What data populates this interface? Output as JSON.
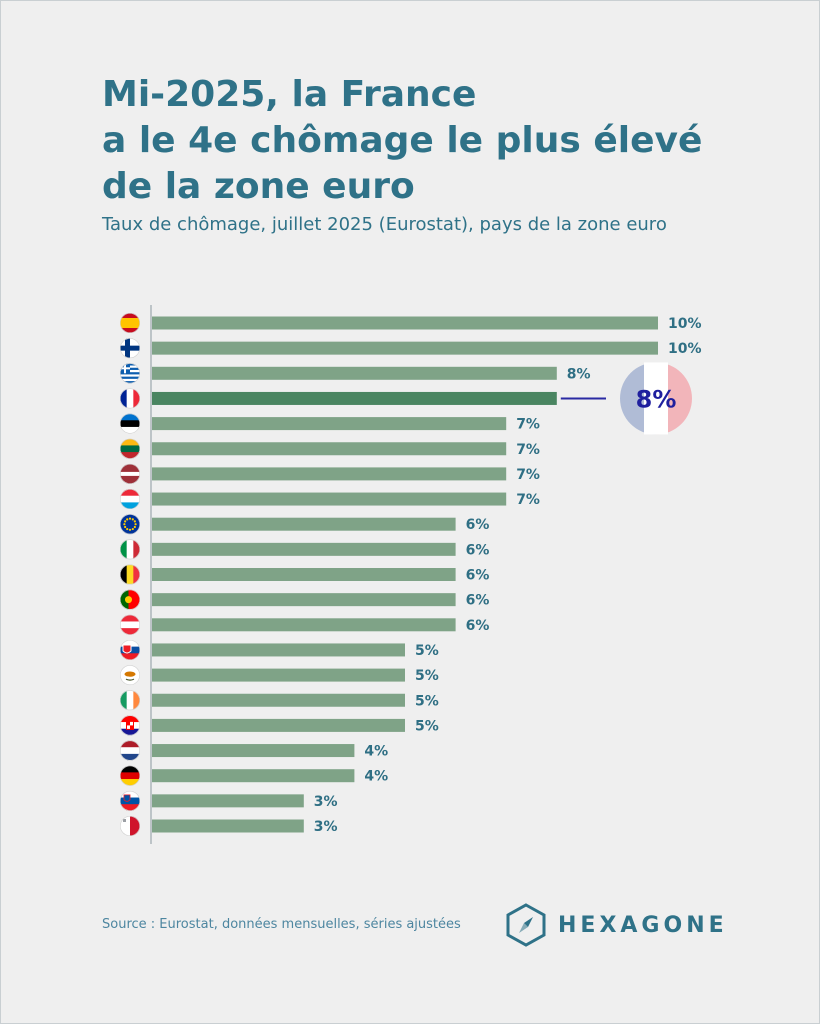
{
  "title_lines": [
    "Mi-2025, la France",
    "a le 4e chômage le plus élevé",
    "de la zone euro"
  ],
  "subtitle": "Taux de chômage, juillet 2025 (Eurostat), pays de la zone euro",
  "source": "Source : Eurostat, données mensuelles, séries ajustées",
  "brand": "HEXAGONE",
  "colors": {
    "title": "#2f7288",
    "bar": "#7fa387",
    "bar_highlight": "#4a8561",
    "value_label": "#2f6f84",
    "callout_text": "#1f1f9e",
    "callout_left": "#b0bcd6",
    "callout_right": "#f2b5ba"
  },
  "chart_data": {
    "type": "bar",
    "orientation": "horizontal",
    "xlim": [
      0,
      10
    ],
    "grid": false,
    "highlight": "france",
    "callout": {
      "target": "france",
      "label": "8%"
    },
    "bars": [
      {
        "country": "spain",
        "flag": "spain-flag-icon",
        "value": 10,
        "label": "10%"
      },
      {
        "country": "finland",
        "flag": "finland-flag-icon",
        "value": 10,
        "label": "10%"
      },
      {
        "country": "greece",
        "flag": "greece-flag-icon",
        "value": 8,
        "label": "8%"
      },
      {
        "country": "france",
        "flag": "france-flag-icon",
        "value": 8,
        "label": ""
      },
      {
        "country": "estonia",
        "flag": "estonia-flag-icon",
        "value": 7,
        "label": "7%"
      },
      {
        "country": "lithuania",
        "flag": "lithuania-flag-icon",
        "value": 7,
        "label": "7%"
      },
      {
        "country": "latvia",
        "flag": "latvia-flag-icon",
        "value": 7,
        "label": "7%"
      },
      {
        "country": "luxembourg",
        "flag": "luxembourg-flag-icon",
        "value": 7,
        "label": "7%"
      },
      {
        "country": "euro-area",
        "flag": "eu-flag-icon",
        "value": 6,
        "label": "6%"
      },
      {
        "country": "italy",
        "flag": "italy-flag-icon",
        "value": 6,
        "label": "6%"
      },
      {
        "country": "belgium",
        "flag": "belgium-flag-icon",
        "value": 6,
        "label": "6%"
      },
      {
        "country": "portugal",
        "flag": "portugal-flag-icon",
        "value": 6,
        "label": "6%"
      },
      {
        "country": "austria",
        "flag": "austria-flag-icon",
        "value": 6,
        "label": "6%"
      },
      {
        "country": "slovakia",
        "flag": "slovakia-flag-icon",
        "value": 5,
        "label": "5%"
      },
      {
        "country": "cyprus",
        "flag": "cyprus-flag-icon",
        "value": 5,
        "label": "5%"
      },
      {
        "country": "ireland",
        "flag": "ireland-flag-icon",
        "value": 5,
        "label": "5%"
      },
      {
        "country": "croatia",
        "flag": "croatia-flag-icon",
        "value": 5,
        "label": "5%"
      },
      {
        "country": "netherlands",
        "flag": "netherlands-flag-icon",
        "value": 4,
        "label": "4%"
      },
      {
        "country": "germany",
        "flag": "germany-flag-icon",
        "value": 4,
        "label": "4%"
      },
      {
        "country": "slovenia",
        "flag": "slovenia-flag-icon",
        "value": 3,
        "label": "3%"
      },
      {
        "country": "malta",
        "flag": "malta-flag-icon",
        "value": 3,
        "label": "3%"
      }
    ]
  }
}
